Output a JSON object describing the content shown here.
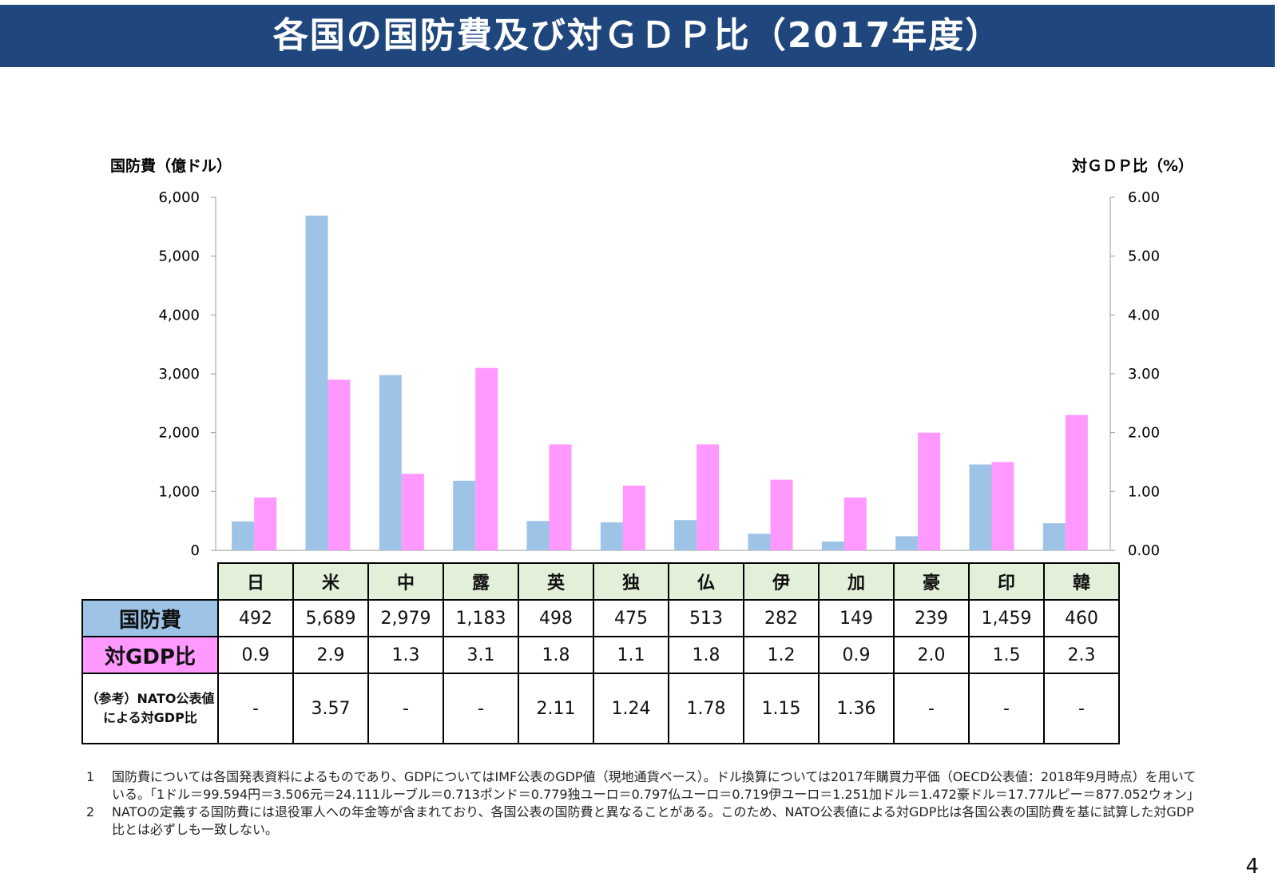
{
  "title": "各国の国防費及び対ＧＤＰ比（2017年度）",
  "colors": {
    "banner": "#1f477e",
    "spending": "#9dc3e6",
    "gdp": "#ff99ff",
    "country_header": "#e2efd9"
  },
  "chart_data": {
    "type": "bar",
    "categories": [
      "日",
      "米",
      "中",
      "露",
      "英",
      "独",
      "仏",
      "伊",
      "加",
      "豪",
      "印",
      "韓"
    ],
    "series": [
      {
        "name": "国防費",
        "axis": "left",
        "unit": "億ドル",
        "values": [
          492,
          5689,
          2979,
          1183,
          498,
          475,
          513,
          282,
          149,
          239,
          1459,
          460
        ]
      },
      {
        "name": "対GDP比",
        "axis": "right",
        "unit": "%",
        "values": [
          0.9,
          2.9,
          1.3,
          3.1,
          1.8,
          1.1,
          1.8,
          1.2,
          0.9,
          2.0,
          1.5,
          2.3
        ]
      }
    ],
    "y_left_label": "国防費（億ドル）",
    "y_right_label": "対ＧＤＰ比（%）",
    "y_left_lim": [
      0,
      6000
    ],
    "y_right_lim": [
      0,
      6
    ],
    "y_left_ticks": [
      "0",
      "1,000",
      "2,000",
      "3,000",
      "4,000",
      "5,000",
      "6,000"
    ],
    "y_right_ticks": [
      "0.00",
      "1.00",
      "2.00",
      "3.00",
      "4.00",
      "5.00",
      "6.00"
    ]
  },
  "table": {
    "row_headers": {
      "spending": "国防費",
      "gdp": "対GDP比",
      "nato": "（参考）NATO公表値による対GDP比"
    },
    "spending": [
      "492",
      "5,689",
      "2,979",
      "1,183",
      "498",
      "475",
      "513",
      "282",
      "149",
      "239",
      "1,459",
      "460"
    ],
    "gdp": [
      "0.9",
      "2.9",
      "1.3",
      "3.1",
      "1.8",
      "1.1",
      "1.8",
      "1.2",
      "0.9",
      "2.0",
      "1.5",
      "2.3"
    ],
    "nato": [
      "-",
      "3.57",
      "-",
      "-",
      "2.11",
      "1.24",
      "1.78",
      "1.15",
      "1.36",
      "-",
      "-",
      "-"
    ]
  },
  "notes": [
    {
      "num": "1",
      "text": "国防費については各国発表資料によるものであり、GDPについてはIMF公表のGDP値（現地通貨ベース）。ドル換算については2017年購買力平価（OECD公表値：2018年9月時点）を用いている。「1ドル＝99.594円＝3.506元＝24.111ルーブル＝0.713ポンド＝0.779独ユーロ＝0.797仏ユーロ＝0.719伊ユーロ＝1.251加ドル＝1.472豪ドル＝17.77ルピー＝877.052ウォン」"
    },
    {
      "num": "2",
      "text": "NATOの定義する国防費には退役軍人への年金等が含まれており、各国公表の国防費と異なることがある。このため、NATO公表値による対GDP比は各国公表の国防費を基に試算した対GDP比とは必ずしも一致しない。"
    }
  ],
  "page_number": "4"
}
